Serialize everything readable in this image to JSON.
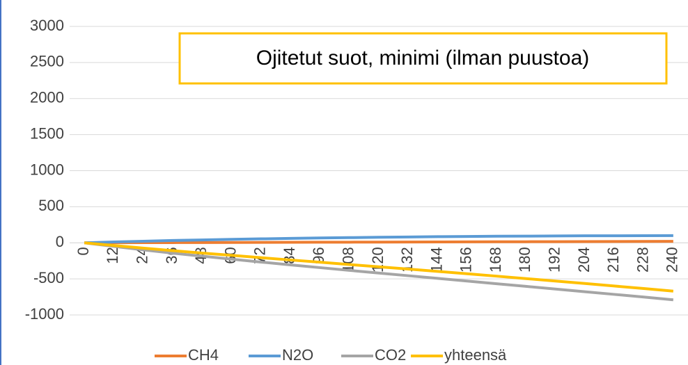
{
  "chart_data": {
    "type": "line",
    "title": "Ojitetut suot, minimi (ilman puustoa)",
    "categories": [
      "0",
      "12",
      "24",
      "36",
      "48",
      "60",
      "72",
      "84",
      "96",
      "108",
      "120",
      "132",
      "144",
      "156",
      "168",
      "180",
      "192",
      "204",
      "216",
      "228",
      "240"
    ],
    "series": [
      {
        "name": "CH4",
        "color": "#ed7d31",
        "values": [
          0,
          1,
          2,
          3,
          4,
          5,
          6,
          7,
          8,
          9,
          10,
          11,
          12,
          13,
          14,
          15,
          16,
          17,
          18,
          19,
          20
        ]
      },
      {
        "name": "N2O",
        "color": "#5b9bd5",
        "values": [
          0,
          12,
          22,
          32,
          40,
          48,
          55,
          61,
          67,
          72,
          77,
          81,
          85,
          88,
          91,
          93,
          95,
          97,
          98,
          99,
          100
        ]
      },
      {
        "name": "CO2",
        "color": "#a5a5a5",
        "values": [
          0,
          -50,
          -98,
          -143,
          -186,
          -227,
          -267,
          -306,
          -344,
          -382,
          -419,
          -456,
          -493,
          -530,
          -567,
          -604,
          -641,
          -678,
          -715,
          -752,
          -790
        ]
      },
      {
        "name": "yhteensä",
        "color": "#ffc000",
        "values": [
          0,
          -37,
          -74,
          -108,
          -142,
          -174,
          -206,
          -238,
          -269,
          -301,
          -332,
          -364,
          -396,
          -429,
          -462,
          -496,
          -530,
          -564,
          -599,
          -634,
          -670
        ]
      }
    ],
    "ylim": [
      -1000,
      3000
    ],
    "yticks": [
      -1000,
      -500,
      0,
      500,
      1000,
      1500,
      2000,
      2500,
      3000
    ],
    "grid": true,
    "legend": "bottom"
  }
}
